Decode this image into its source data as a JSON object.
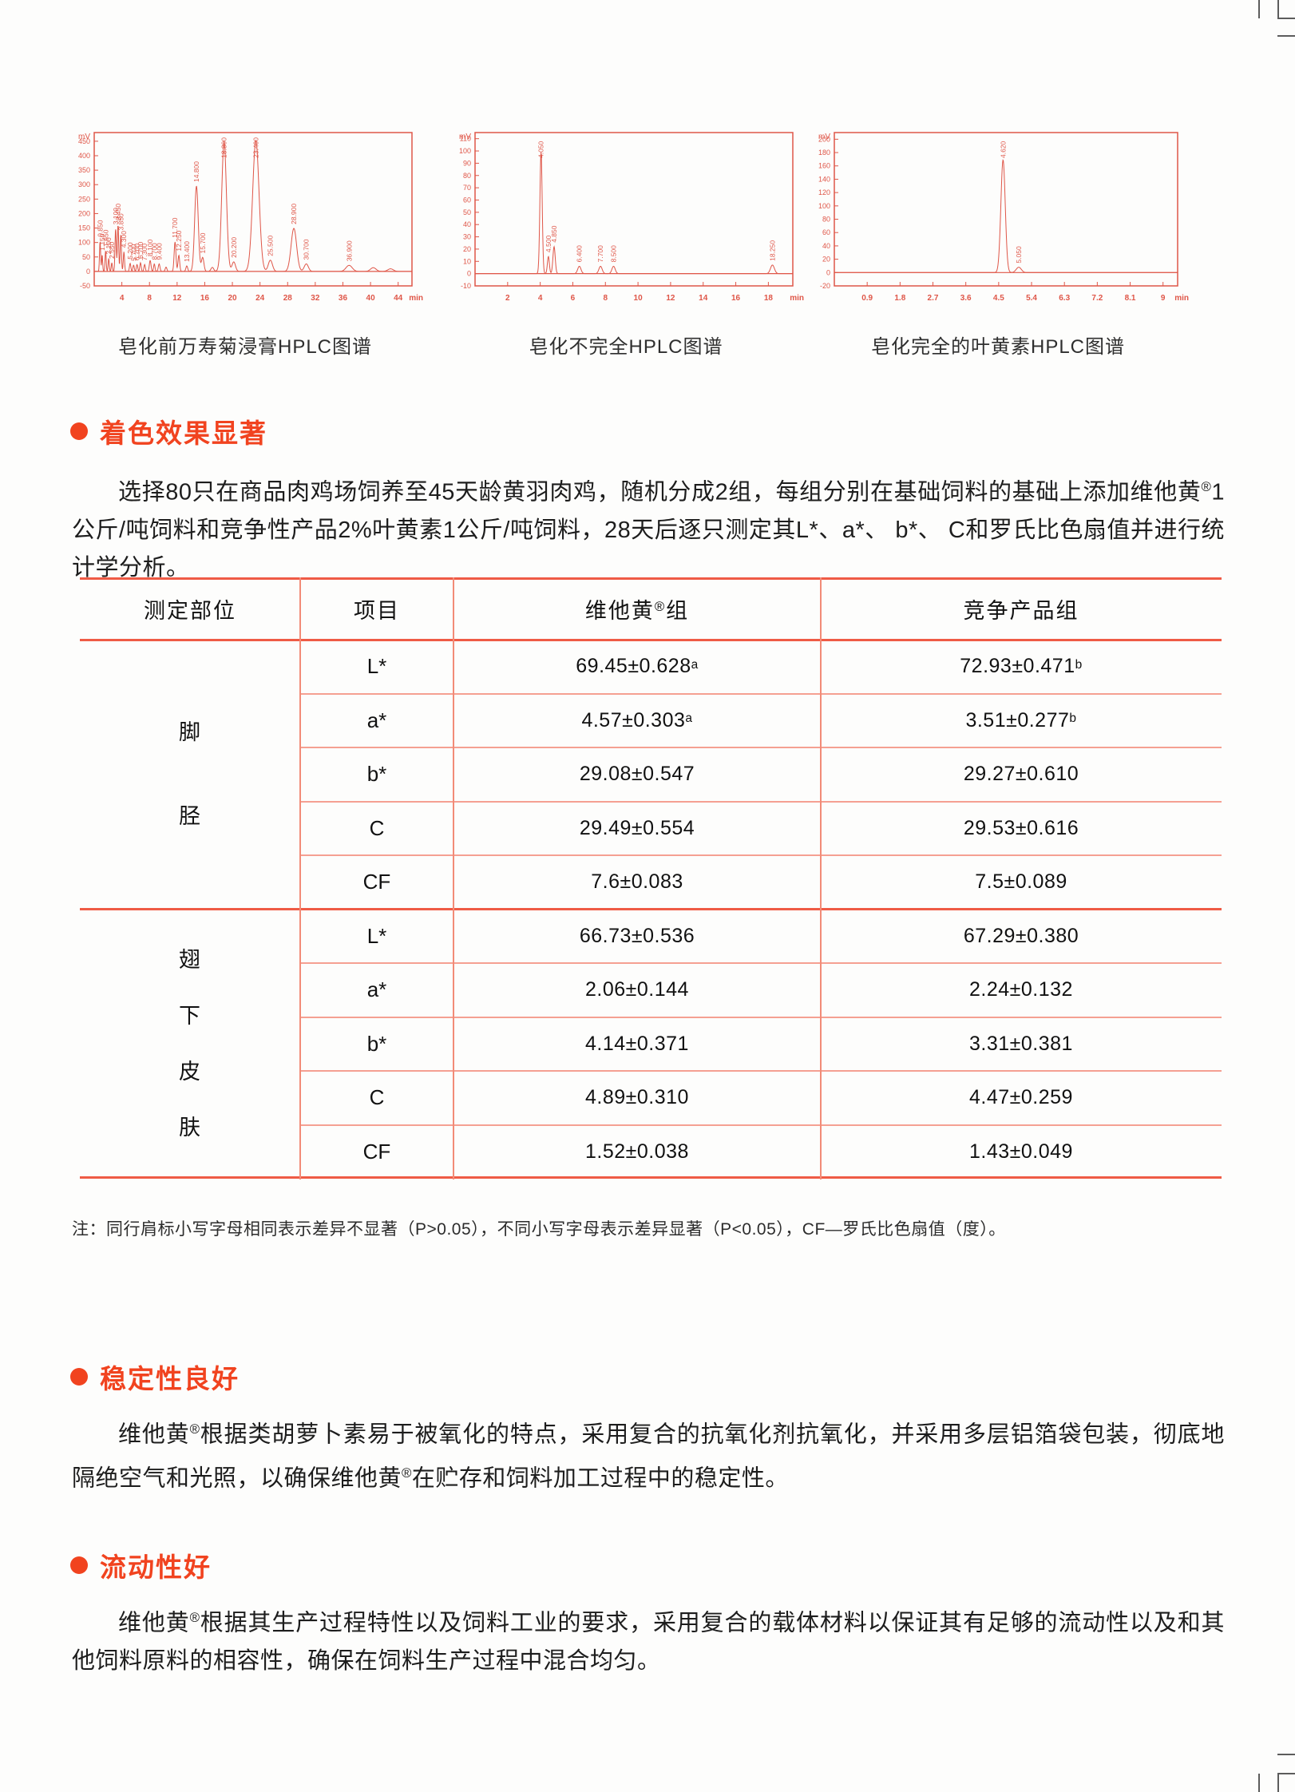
{
  "colors": {
    "accent": "#f1431f",
    "chart_stroke": "#df5648",
    "table_line_thick": "#ef5b45",
    "table_line_thin": "#f5a092",
    "table_line_vertical": "#f28b77",
    "body_text": "#1d1d1d"
  },
  "chart_data": [
    {
      "type": "line",
      "title": "皂化前万寿菊浸膏HPLC图谱",
      "ylabel": "mV",
      "xlabel": "min",
      "ylim": [
        -50,
        480
      ],
      "yticks": [
        -50,
        0,
        50,
        100,
        150,
        200,
        250,
        300,
        350,
        400,
        450
      ],
      "xlim": [
        0,
        46
      ],
      "xticks": [
        4,
        8,
        12,
        16,
        20,
        24,
        28,
        32,
        36,
        40,
        44
      ],
      "grid": false,
      "legend": null,
      "peak_label_min_height": 18,
      "peaks": [
        [
          0.85,
          105,
          0.08
        ],
        [
          1.15,
          58,
          0.07
        ],
        [
          1.65,
          72,
          0.08
        ],
        [
          2.1,
          45,
          0.08
        ],
        [
          2.55,
          30,
          0.08
        ],
        [
          3.1,
          148,
          0.09
        ],
        [
          3.45,
          162,
          0.09
        ],
        [
          3.85,
          128,
          0.09
        ],
        [
          4.3,
          68,
          0.09
        ],
        [
          5.2,
          28,
          0.1
        ],
        [
          5.7,
          22,
          0.1
        ],
        [
          6.2,
          24,
          0.1
        ],
        [
          6.7,
          30,
          0.1
        ],
        [
          7.3,
          24,
          0.1
        ],
        [
          8.1,
          38,
          0.12
        ],
        [
          8.7,
          26,
          0.1
        ],
        [
          9.4,
          26,
          0.12
        ],
        [
          10.4,
          15,
          0.12
        ],
        [
          11.7,
          102,
          0.13
        ],
        [
          12.25,
          56,
          0.12
        ],
        [
          13.4,
          19,
          0.13
        ],
        [
          14.8,
          295,
          0.26
        ],
        [
          15.7,
          48,
          0.18
        ],
        [
          17.1,
          14,
          0.2
        ],
        [
          18.8,
          448,
          0.34
        ],
        [
          20.2,
          33,
          0.25
        ],
        [
          23.4,
          452,
          0.46
        ],
        [
          25.5,
          39,
          0.3
        ],
        [
          28.9,
          149,
          0.4
        ],
        [
          30.7,
          26,
          0.3
        ],
        [
          36.9,
          21,
          0.45
        ],
        [
          40.4,
          13,
          0.4
        ],
        [
          42.9,
          9,
          0.4
        ]
      ]
    },
    {
      "type": "line",
      "title": "皂化不完全HPLC图谱",
      "ylabel": "mV",
      "xlabel": "min",
      "ylim": [
        -10,
        115
      ],
      "yticks": [
        -10,
        0,
        10,
        20,
        30,
        40,
        50,
        60,
        70,
        80,
        90,
        100,
        110
      ],
      "xlim": [
        0,
        19.5
      ],
      "xticks": [
        2,
        4,
        6,
        8,
        10,
        12,
        14,
        16,
        18
      ],
      "grid": false,
      "legend": null,
      "peak_label_min_height": 5,
      "peaks": [
        [
          4.05,
          99,
          0.07
        ],
        [
          4.5,
          14,
          0.06
        ],
        [
          4.85,
          22,
          0.07
        ],
        [
          6.4,
          6,
          0.1
        ],
        [
          7.7,
          6,
          0.1
        ],
        [
          8.5,
          6,
          0.1
        ],
        [
          18.25,
          7,
          0.12
        ]
      ]
    },
    {
      "type": "line",
      "title": "皂化完全的叶黄素HPLC图谱",
      "ylabel": "mV",
      "xlabel": "min",
      "ylim": [
        -20,
        210
      ],
      "yticks": [
        -20,
        0,
        20,
        40,
        60,
        80,
        100,
        120,
        140,
        160,
        180,
        200
      ],
      "xlim": [
        0,
        9.4
      ],
      "xticks": [
        0.9,
        1.8,
        2.7,
        3.6,
        4.5,
        5.4,
        6.3,
        7.2,
        8.1,
        9
      ],
      "grid": false,
      "legend": null,
      "peak_label_min_height": 5,
      "peaks": [
        [
          4.62,
          169,
          0.06
        ],
        [
          5.05,
          8,
          0.07
        ]
      ]
    }
  ],
  "sections": [
    {
      "heading": "着色效果显著",
      "paragraph": "选择80只在商品肉鸡场饲养至45天龄黄羽肉鸡，随机分成2组，每组分别在基础饲料的基础上添加维他黄®1公斤/吨饲料和竞争性产品2%叶黄素1公斤/吨饲料，28天后逐只测定其L*、a*、 b*、 C和罗氏比色扇值并进行统计学分析。"
    },
    {
      "heading": "稳定性良好",
      "paragraph": "维他黄®根据类胡萝卜素易于被氧化的特点，采用复合的抗氧化剂抗氧化，并采用多层铝箔袋包装，彻底地隔绝空气和光照，以确保维他黄®在贮存和饲料加工过程中的稳定性。"
    },
    {
      "heading": "流动性好",
      "paragraph": "维他黄®根据其生产过程特性以及饲料工业的要求，采用复合的载体材料以保证其有足够的流动性以及和其他饲料原料的相容性，确保在饲料生产过程中混合均匀。"
    }
  ],
  "table": {
    "headers": [
      "测定部位",
      "项目",
      "维他黄®组",
      "竞争产品组"
    ],
    "groups": [
      {
        "part": "脚胫",
        "rows": [
          {
            "item": "L*",
            "vita": "69.45±0.628",
            "vita_sup": "a",
            "comp": "72.93±0.471",
            "comp_sup": "b"
          },
          {
            "item": "a*",
            "vita": "4.57±0.303",
            "vita_sup": "a",
            "comp": "3.51±0.277",
            "comp_sup": "b"
          },
          {
            "item": "b*",
            "vita": "29.08±0.547",
            "vita_sup": "",
            "comp": "29.27±0.610",
            "comp_sup": ""
          },
          {
            "item": "C",
            "vita": "29.49±0.554",
            "vita_sup": "",
            "comp": "29.53±0.616",
            "comp_sup": ""
          },
          {
            "item": "CF",
            "vita": "7.6±0.083",
            "vita_sup": "",
            "comp": "7.5±0.089",
            "comp_sup": ""
          }
        ]
      },
      {
        "part": "翅下皮肤",
        "rows": [
          {
            "item": "L*",
            "vita": "66.73±0.536",
            "vita_sup": "",
            "comp": "67.29±0.380",
            "comp_sup": ""
          },
          {
            "item": "a*",
            "vita": "2.06±0.144",
            "vita_sup": "",
            "comp": "2.24±0.132",
            "comp_sup": ""
          },
          {
            "item": "b*",
            "vita": "4.14±0.371",
            "vita_sup": "",
            "comp": "3.31±0.381",
            "comp_sup": ""
          },
          {
            "item": "C",
            "vita": "4.89±0.310",
            "vita_sup": "",
            "comp": "4.47±0.259",
            "comp_sup": ""
          },
          {
            "item": "CF",
            "vita": "1.52±0.038",
            "vita_sup": "",
            "comp": "1.43±0.049",
            "comp_sup": ""
          }
        ]
      }
    ],
    "footnote": "注：同行肩标小写字母相同表示差异不显著（P>0.05），不同小写字母表示差异显著（P<0.05），CF—罗氏比色扇值（度）。"
  }
}
